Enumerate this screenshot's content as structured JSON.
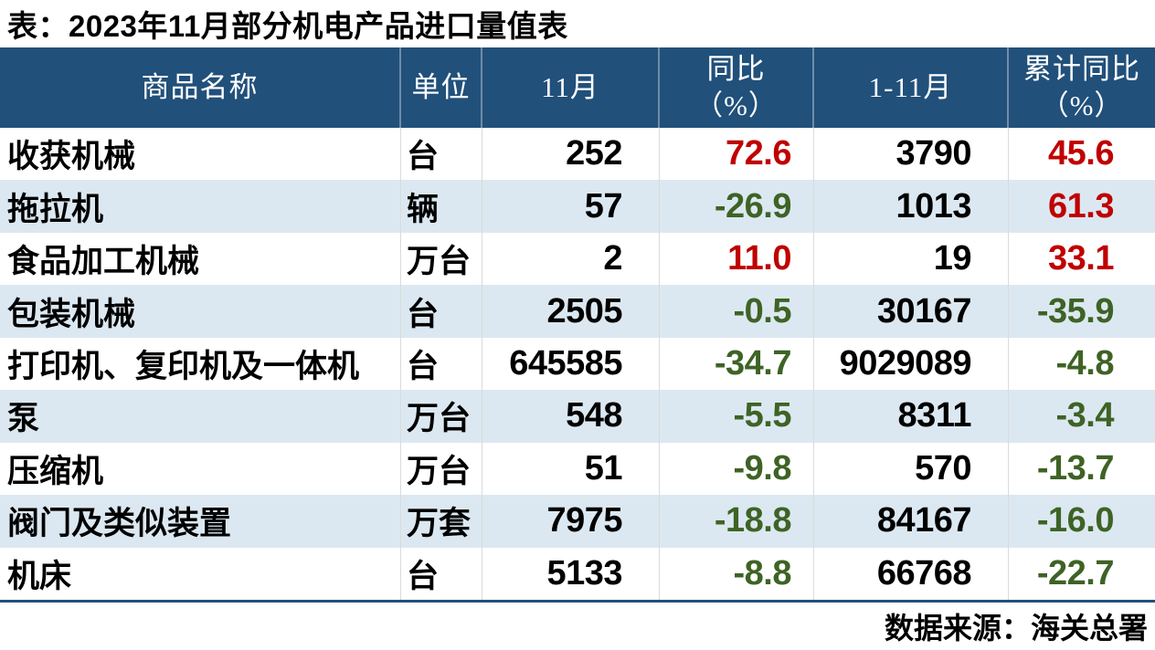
{
  "title": "表：2023年11月部分机电产品进口量值表",
  "source": "数据来源：海关总署",
  "colors": {
    "header_bg": "#21507A",
    "alt_row_bg": "#DCE8F1",
    "rule": "#21507A",
    "positive": "#C00000",
    "negative": "#3E6325",
    "header_text": "#FFFFFF",
    "body_text": "#000000"
  },
  "chart_data": {
    "type": "table",
    "title": "表：2023年11月部分机电产品进口量值表",
    "columns": [
      "商品名称",
      "单位",
      "11月",
      "同比\n（%）",
      "1-11月",
      "累计同比\n（%）"
    ],
    "rows": [
      {
        "name": "收获机械",
        "unit": "台",
        "nov": "252",
        "yoy": "72.6",
        "jan_nov": "3790",
        "cum_yoy": "45.6"
      },
      {
        "name": "拖拉机",
        "unit": "辆",
        "nov": "57",
        "yoy": "-26.9",
        "jan_nov": "1013",
        "cum_yoy": "61.3"
      },
      {
        "name": "食品加工机械",
        "unit": "万台",
        "nov": "2",
        "yoy": "11.0",
        "jan_nov": "19",
        "cum_yoy": "33.1"
      },
      {
        "name": "包装机械",
        "unit": "台",
        "nov": "2505",
        "yoy": "-0.5",
        "jan_nov": "30167",
        "cum_yoy": "-35.9"
      },
      {
        "name": "打印机、复印机及一体机",
        "unit": "台",
        "nov": "645585",
        "yoy": "-34.7",
        "jan_nov": "9029089",
        "cum_yoy": "-4.8"
      },
      {
        "name": "泵",
        "unit": "万台",
        "nov": "548",
        "yoy": "-5.5",
        "jan_nov": "8311",
        "cum_yoy": "-3.4"
      },
      {
        "name": "压缩机",
        "unit": "万台",
        "nov": "51",
        "yoy": "-9.8",
        "jan_nov": "570",
        "cum_yoy": "-13.7"
      },
      {
        "name": "阀门及类似装置",
        "unit": "万套",
        "nov": "7975",
        "yoy": "-18.8",
        "jan_nov": "84167",
        "cum_yoy": "-16.0"
      },
      {
        "name": "机床",
        "unit": "台",
        "nov": "5133",
        "yoy": "-8.8",
        "jan_nov": "66768",
        "cum_yoy": "-22.7"
      }
    ],
    "source": "数据来源：海关总署",
    "legend": "values in 同比/累计同比 columns: positive = red, negative = dark green"
  }
}
